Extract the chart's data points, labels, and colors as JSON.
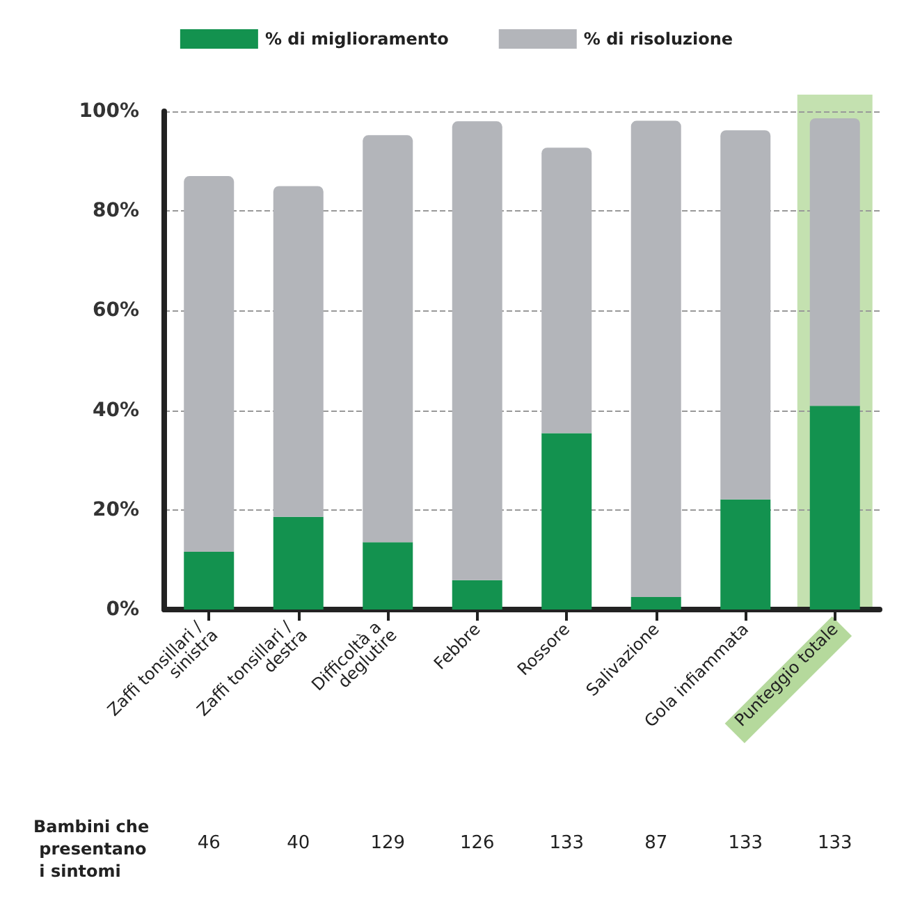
{
  "chart_data": {
    "type": "bar",
    "stacked": true,
    "categories": [
      "Zaffi tonsillari / sinistra",
      "Zaffi tonsillari / destra",
      "Difficoltà a deglutire",
      "Febbre",
      "Rossore",
      "Salivazione",
      "Gola infiammata",
      "Punteggio totale"
    ],
    "series": [
      {
        "name": "% di miglioramento",
        "color": "#13924f",
        "values": [
          11.6,
          18.6,
          13.5,
          5.9,
          35.4,
          2.5,
          22.1,
          40.9
        ]
      },
      {
        "name": "% di risoluzione",
        "color": "#b3b5ba",
        "values": [
          75.4,
          66.4,
          81.7,
          92.1,
          57.3,
          95.6,
          74.1,
          57.7
        ]
      }
    ],
    "ylim": [
      0,
      100
    ],
    "yticks": [
      {
        "value": 0,
        "label": "0%"
      },
      {
        "value": 20,
        "label": "20%"
      },
      {
        "value": 40,
        "label": "40%"
      },
      {
        "value": 60,
        "label": "60%"
      },
      {
        "value": 80,
        "label": "80%"
      },
      {
        "value": 100,
        "label": "100%"
      }
    ],
    "grid": "y",
    "legend": "top",
    "bands": [
      {
        "axis": "x",
        "from": "Punteggio totale",
        "to": "Punteggio totale",
        "color": "#b5d99c"
      }
    ],
    "annotations": [
      "Bambini che presentano i sintomi",
      "46",
      "40",
      "129",
      "126",
      "133",
      "87",
      "133",
      "133"
    ]
  }
}
